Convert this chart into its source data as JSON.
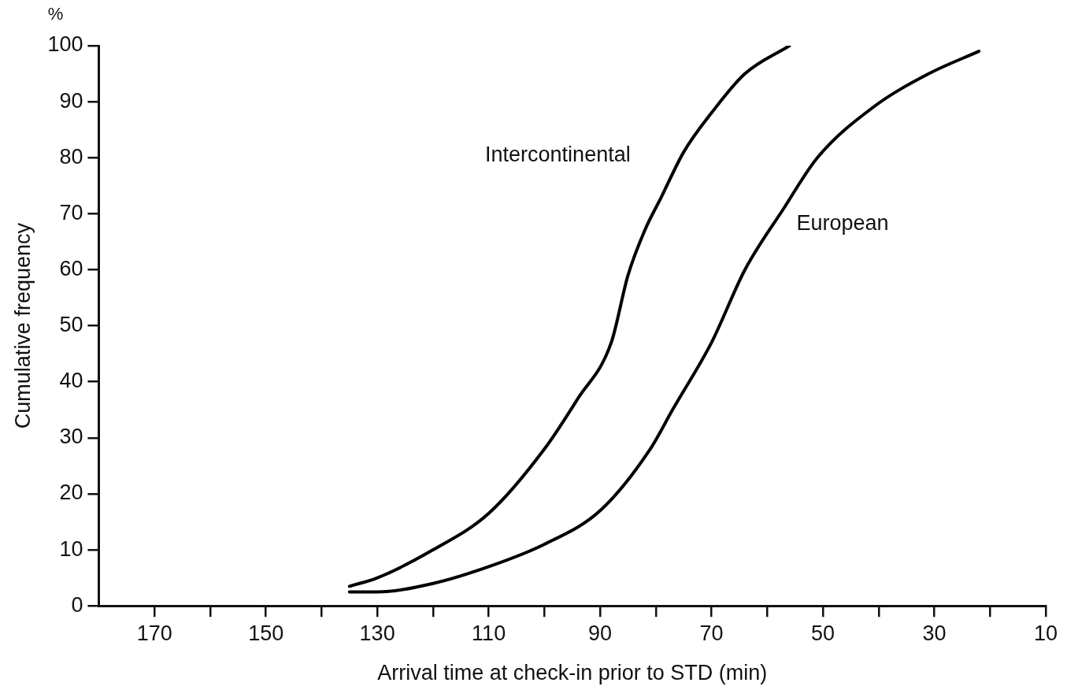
{
  "chart_data": {
    "type": "line",
    "xlabel": "Arrival time at check-in prior to STD (min)",
    "ylabel": "Cumulative frequency",
    "annotations": [
      "%"
    ],
    "xlim": [
      180,
      10
    ],
    "xticks": [
      170,
      {
        "value": 160,
        "label": null
      },
      150,
      {
        "value": 140,
        "label": null
      },
      130,
      {
        "value": 120,
        "label": null
      },
      110,
      {
        "value": 100,
        "label": null
      },
      90,
      {
        "value": 80,
        "label": null
      },
      70,
      {
        "value": 60,
        "label": null
      },
      50,
      {
        "value": 40,
        "label": null
      },
      30,
      {
        "value": 20,
        "label": null
      },
      10
    ],
    "ylim": [
      0,
      100
    ],
    "yticks": [
      0,
      10,
      20,
      30,
      40,
      50,
      60,
      70,
      80,
      90,
      100
    ],
    "grid": false,
    "legend": false,
    "marker": "none",
    "line_style": "solid",
    "series": [
      {
        "name": "Intercontinental",
        "color": "#000000",
        "x": [
          135,
          130,
          120,
          110,
          100,
          94,
          88,
          85,
          82,
          79,
          75,
          70,
          64,
          56
        ],
        "values": [
          3.5,
          5,
          10,
          16.5,
          28,
          37,
          47,
          59,
          67,
          73,
          81,
          88,
          95,
          100
        ]
      },
      {
        "name": "European",
        "color": "#000000",
        "x": [
          135,
          130,
          120,
          110,
          100,
          90,
          81,
          77,
          70,
          64,
          57,
          51,
          41,
          31,
          22
        ],
        "values": [
          2.5,
          2.5,
          4,
          7,
          11,
          17,
          28,
          35,
          47,
          60,
          71,
          80,
          89,
          95,
          99
        ]
      }
    ]
  }
}
